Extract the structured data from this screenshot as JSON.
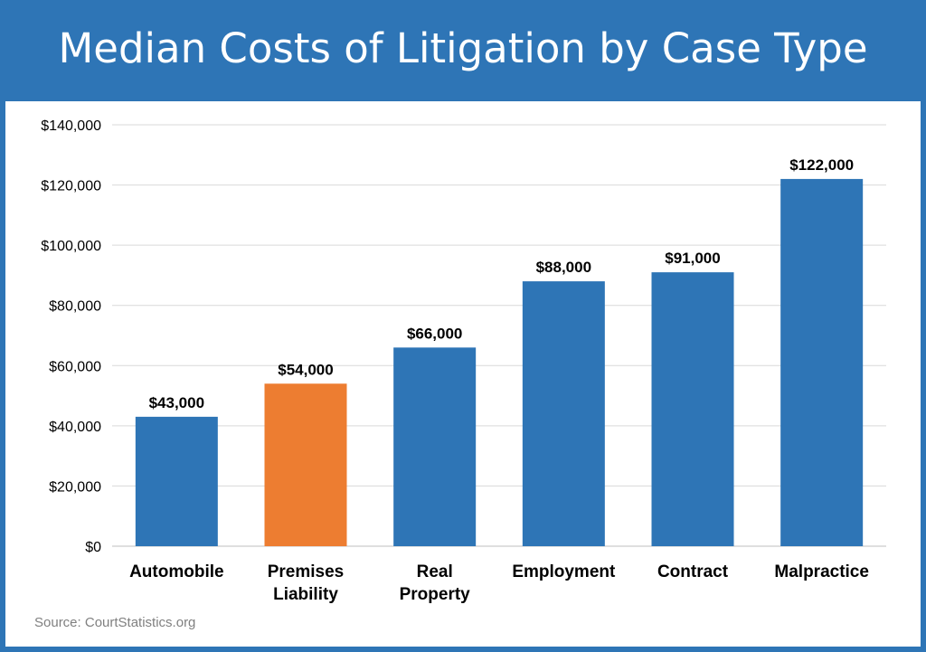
{
  "title": "Median Costs of Litigation by Case Type",
  "source": "Source: CourtStatistics.org",
  "colors": {
    "primary": "#2e75b6",
    "highlight": "#ed7d31",
    "grid": "#d9d9d9",
    "background": "#ffffff"
  },
  "chart_data": {
    "type": "bar",
    "title": "Median Costs of Litigation by Case Type",
    "categories": [
      "Automobile",
      "Premises Liability",
      "Real Property",
      "Employment",
      "Contract",
      "Malpractice"
    ],
    "category_lines": [
      [
        "Automobile"
      ],
      [
        "Premises",
        "Liability"
      ],
      [
        "Real",
        "Property"
      ],
      [
        "Employment"
      ],
      [
        "Contract"
      ],
      [
        "Malpractice"
      ]
    ],
    "values": [
      43000,
      54000,
      66000,
      88000,
      91000,
      122000
    ],
    "data_labels": [
      "$43,000",
      "$54,000",
      "$66,000",
      "$88,000",
      "$91,000",
      "$122,000"
    ],
    "highlight_index": 1,
    "xlabel": "",
    "ylabel": "",
    "ylim": [
      0,
      140000
    ],
    "yticks": [
      0,
      20000,
      40000,
      60000,
      80000,
      100000,
      120000,
      140000
    ],
    "ytick_labels": [
      "$0",
      "$20,000",
      "$40,000",
      "$60,000",
      "$80,000",
      "$100,000",
      "$120,000",
      "$140,000"
    ],
    "grid": true,
    "legend": "none"
  }
}
